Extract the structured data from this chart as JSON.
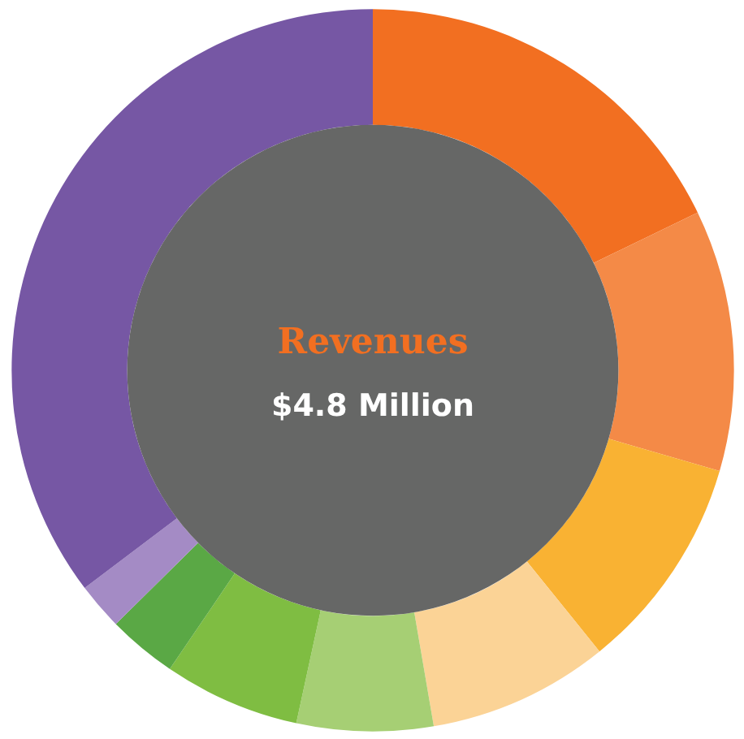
{
  "chart_data": {
    "type": "donut",
    "title": "Revenues",
    "subtitle": "$4.8 Million",
    "categories": [
      null,
      null,
      null,
      null,
      null,
      null,
      null,
      null,
      null
    ],
    "values": [
      17.8,
      11.7,
      9.7,
      8.1,
      6.1,
      6.1,
      3.1,
      2.1,
      35.3
    ],
    "colors": [
      "#f26f21",
      "#f48a47",
      "#f9b233",
      "#fbd396",
      "#a6cf74",
      "#7fbd42",
      "#5aa845",
      "#a48bc5",
      "#7657a4"
    ]
  }
}
